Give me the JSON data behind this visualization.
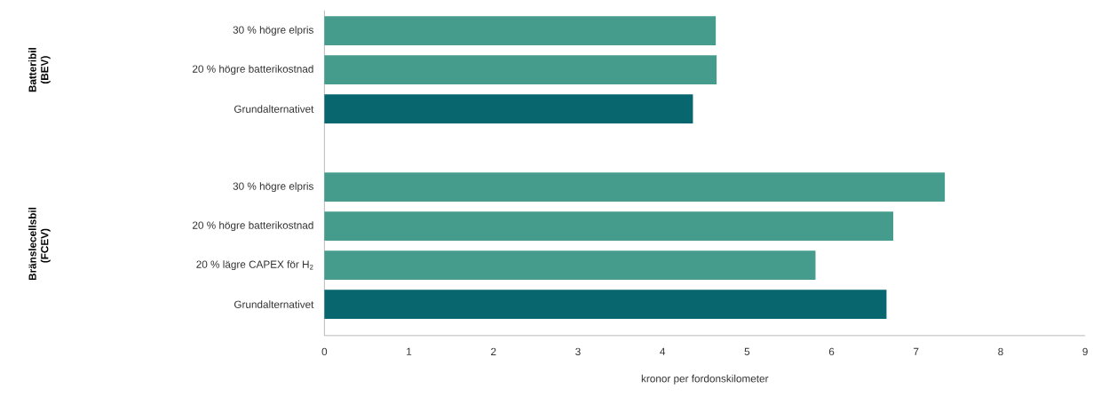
{
  "chart_data": {
    "type": "bar",
    "orientation": "horizontal",
    "categories": [
      "30 % högre elpris",
      "20 % högre batterikostnad",
      "Grundalternativet",
      null,
      "30 % högre elpris",
      "20 % högre batterikostnad",
      "20 % lägre CAPEX för H$_{2}$",
      "Grundalternativet"
    ],
    "values": [
      4.63,
      4.64,
      4.36,
      null,
      7.34,
      6.73,
      5.81,
      6.65
    ],
    "colors": [
      "#459c8c",
      "#459c8c",
      "#08666e",
      null,
      "#459c8c",
      "#459c8c",
      "#459c8c",
      "#08666e"
    ],
    "xlabel": "kronor per fordonskilometer",
    "xlim": [
      0,
      9
    ],
    "xticks": [
      0,
      1,
      2,
      3,
      4,
      5,
      6,
      7,
      8,
      9
    ],
    "annotations": [
      "Batteribil (BEV)",
      "Bränslecellsbil (FCEV)"
    ],
    "grid": false
  }
}
